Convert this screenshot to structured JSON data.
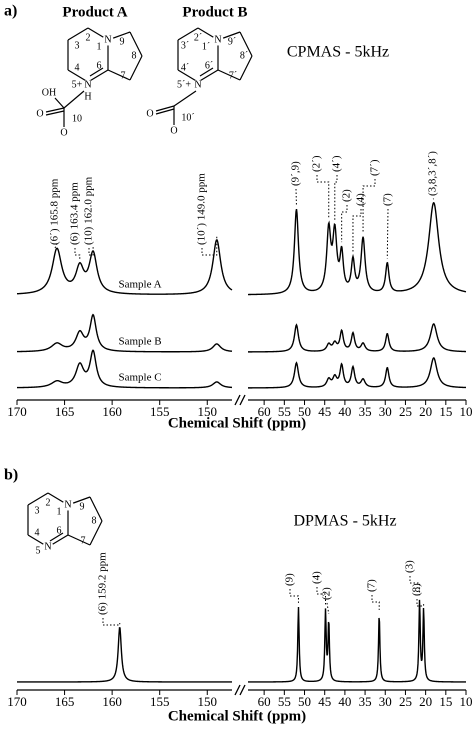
{
  "panel_a": {
    "label": "a)",
    "products": [
      "Product A",
      "Product B"
    ],
    "mode": "CPMAS - 5kHz",
    "structure_a": [
      "N",
      "1",
      "2",
      "3",
      "4",
      "5+",
      "N",
      "H",
      "6",
      "7",
      "8",
      "9",
      "OH",
      "O",
      "O",
      "10"
    ],
    "structure_b": [
      "N",
      "1´",
      "2´",
      "3´",
      "4´",
      "5´+",
      "N",
      "6´",
      "7´",
      "8´",
      "9´",
      "O",
      "O",
      "10´"
    ],
    "xlabel": "Chemical Shift (ppm)",
    "xlim_left": [
      170,
      147.4
    ],
    "xticks_left": [
      170,
      165,
      160,
      155,
      150
    ],
    "xlim_right": [
      64,
      10
    ],
    "xticks_right": [
      60,
      55,
      50,
      45,
      40,
      35,
      30,
      25,
      20,
      15,
      10
    ],
    "annotations": [
      {
        "text": "(6´) 165.8 ppm",
        "ppm": 165.8
      },
      {
        "text": "(6) 163.4 ppm",
        "ppm": 163.4
      },
      {
        "text": "(10) 162.0 ppm",
        "ppm": 162.0
      },
      {
        "text": "(10´) 149.0 ppm",
        "ppm": 149.0
      },
      {
        "text": "(9´,9)",
        "ppm": 52
      },
      {
        "text": "(2´)",
        "ppm": 44
      },
      {
        "text": "(4´)",
        "ppm": 42.5
      },
      {
        "text": "(2)",
        "ppm": 40.8
      },
      {
        "text": "(4)",
        "ppm": 38
      },
      {
        "text": "(7´)",
        "ppm": 35.5
      },
      {
        "text": "(7)",
        "ppm": 29.5
      },
      {
        "text": "(3,8,3´,8´)",
        "ppm": 18
      }
    ],
    "spectra": [
      {
        "name": "Sample A",
        "peaks": [
          {
            "ppm": 165.8,
            "height": 45,
            "width": 0.6
          },
          {
            "ppm": 163.4,
            "height": 25,
            "width": 0.5
          },
          {
            "ppm": 162.0,
            "height": 40,
            "width": 0.5
          },
          {
            "ppm": 149.0,
            "height": 55,
            "width": 0.5
          },
          {
            "ppm": 52,
            "height": 85,
            "width": 0.6
          },
          {
            "ppm": 44,
            "height": 62,
            "width": 0.6
          },
          {
            "ppm": 42.5,
            "height": 58,
            "width": 0.6
          },
          {
            "ppm": 40.8,
            "height": 38,
            "width": 0.5
          },
          {
            "ppm": 38,
            "height": 32,
            "width": 0.5
          },
          {
            "ppm": 35.5,
            "height": 55,
            "width": 0.6
          },
          {
            "ppm": 29.5,
            "height": 30,
            "width": 0.5
          },
          {
            "ppm": 18,
            "height": 92,
            "width": 1.5
          }
        ]
      },
      {
        "name": "Sample B",
        "peaks": [
          {
            "ppm": 165.8,
            "height": 8,
            "width": 0.7
          },
          {
            "ppm": 163.4,
            "height": 18,
            "width": 0.5
          },
          {
            "ppm": 162.0,
            "height": 35,
            "width": 0.4
          },
          {
            "ppm": 149.0,
            "height": 8,
            "width": 0.5
          },
          {
            "ppm": 52,
            "height": 27,
            "width": 0.6
          },
          {
            "ppm": 44,
            "height": 7,
            "width": 0.6
          },
          {
            "ppm": 42.5,
            "height": 8,
            "width": 0.6
          },
          {
            "ppm": 40.8,
            "height": 20,
            "width": 0.5
          },
          {
            "ppm": 38,
            "height": 18,
            "width": 0.5
          },
          {
            "ppm": 35.5,
            "height": 8,
            "width": 0.6
          },
          {
            "ppm": 29.5,
            "height": 18,
            "width": 0.5
          },
          {
            "ppm": 18,
            "height": 28,
            "width": 1.0
          }
        ]
      },
      {
        "name": "Sample C",
        "peaks": [
          {
            "ppm": 165.8,
            "height": 6,
            "width": 0.7
          },
          {
            "ppm": 163.4,
            "height": 22,
            "width": 0.5
          },
          {
            "ppm": 162.0,
            "height": 35,
            "width": 0.4
          },
          {
            "ppm": 149.0,
            "height": 6,
            "width": 0.5
          },
          {
            "ppm": 52,
            "height": 25,
            "width": 0.6
          },
          {
            "ppm": 44,
            "height": 8,
            "width": 0.6
          },
          {
            "ppm": 42.5,
            "height": 10,
            "width": 0.6
          },
          {
            "ppm": 40.8,
            "height": 22,
            "width": 0.5
          },
          {
            "ppm": 38,
            "height": 20,
            "width": 0.5
          },
          {
            "ppm": 35.5,
            "height": 8,
            "width": 0.6
          },
          {
            "ppm": 29.5,
            "height": 20,
            "width": 0.5
          },
          {
            "ppm": 18,
            "height": 30,
            "width": 1.0
          }
        ]
      }
    ]
  },
  "panel_b": {
    "label": "b)",
    "mode": "DPMAS - 5kHz",
    "structure": [
      "N",
      "1",
      "2",
      "3",
      "4",
      "5",
      "N",
      "6",
      "7",
      "8",
      "9"
    ],
    "xlabel": "Chemical Shift (ppm)",
    "xlim_left": [
      170,
      147.4
    ],
    "xticks_left": [
      170,
      165,
      160,
      155,
      150
    ],
    "xlim_right": [
      64,
      10
    ],
    "xticks_right": [
      60,
      55,
      50,
      45,
      40,
      35,
      30,
      25,
      20,
      15,
      10
    ],
    "annotations": [
      {
        "text": "(6) 159.2 ppm",
        "ppm": 159.2
      },
      {
        "text": "(9)",
        "ppm": 51.5
      },
      {
        "text": "(4)",
        "ppm": 44.8
      },
      {
        "text": "(2)",
        "ppm": 44
      },
      {
        "text": "(7)",
        "ppm": 31.5
      },
      {
        "text": "(3)",
        "ppm": 21.5
      },
      {
        "text": "(8)",
        "ppm": 20.5
      }
    ],
    "spectra": [
      {
        "peaks": [
          {
            "ppm": 159.2,
            "height": 55,
            "width": 0.2
          },
          {
            "ppm": 51.5,
            "height": 75,
            "width": 0.2
          },
          {
            "ppm": 44.8,
            "height": 70,
            "width": 0.2
          },
          {
            "ppm": 44,
            "height": 60,
            "width": 0.2
          },
          {
            "ppm": 31.5,
            "height": 68,
            "width": 0.2
          },
          {
            "ppm": 21.5,
            "height": 80,
            "width": 0.2
          },
          {
            "ppm": 20.5,
            "height": 72,
            "width": 0.2
          }
        ]
      }
    ]
  }
}
